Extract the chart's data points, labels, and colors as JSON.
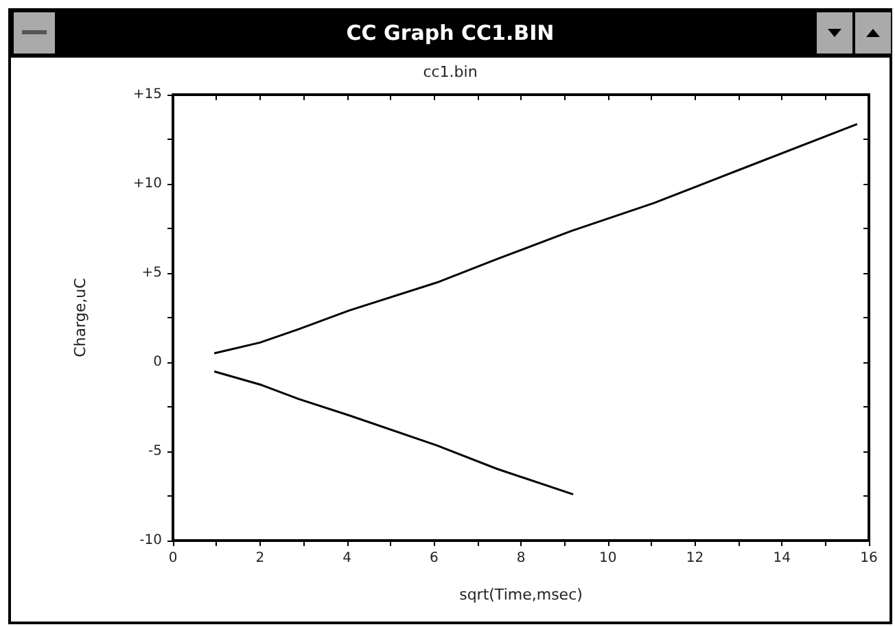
{
  "chart_data": {
    "type": "line",
    "title": "CC Graph CC1.BIN",
    "subtitle": "cc1.bin",
    "xlabel": "sqrt(Time,msec)",
    "ylabel": "Charge,uC",
    "xlim": [
      0,
      16
    ],
    "xticks": [
      0,
      2,
      4,
      6,
      8,
      10,
      12,
      14,
      16
    ],
    "ylim": [
      -10,
      15
    ],
    "yticks": [
      {
        "value": -10,
        "label": "-10"
      },
      {
        "value": -5,
        "label": "-5"
      },
      0,
      {
        "value": 5,
        "label": "+5"
      },
      {
        "value": 10,
        "label": "+10"
      },
      {
        "value": 15,
        "label": "+15"
      }
    ],
    "grid": false,
    "marker": "none",
    "line_style": "solid",
    "series": [
      {
        "color": "#000000",
        "x": [
          0.95,
          2.0,
          2.9,
          4.05,
          6.07,
          7.45,
          9.15,
          11.05,
          12.97,
          15.73
        ],
        "values": [
          0.5,
          1.1,
          1.86,
          2.9,
          4.47,
          5.78,
          7.35,
          8.92,
          10.74,
          13.35
        ]
      },
      {
        "color": "#000000",
        "x": [
          0.95,
          2.04,
          2.89,
          4.05,
          6.07,
          7.45,
          9.2
        ],
        "values": [
          -0.52,
          -1.28,
          -2.06,
          -2.98,
          -4.67,
          -5.98,
          -7.41
        ]
      }
    ]
  }
}
